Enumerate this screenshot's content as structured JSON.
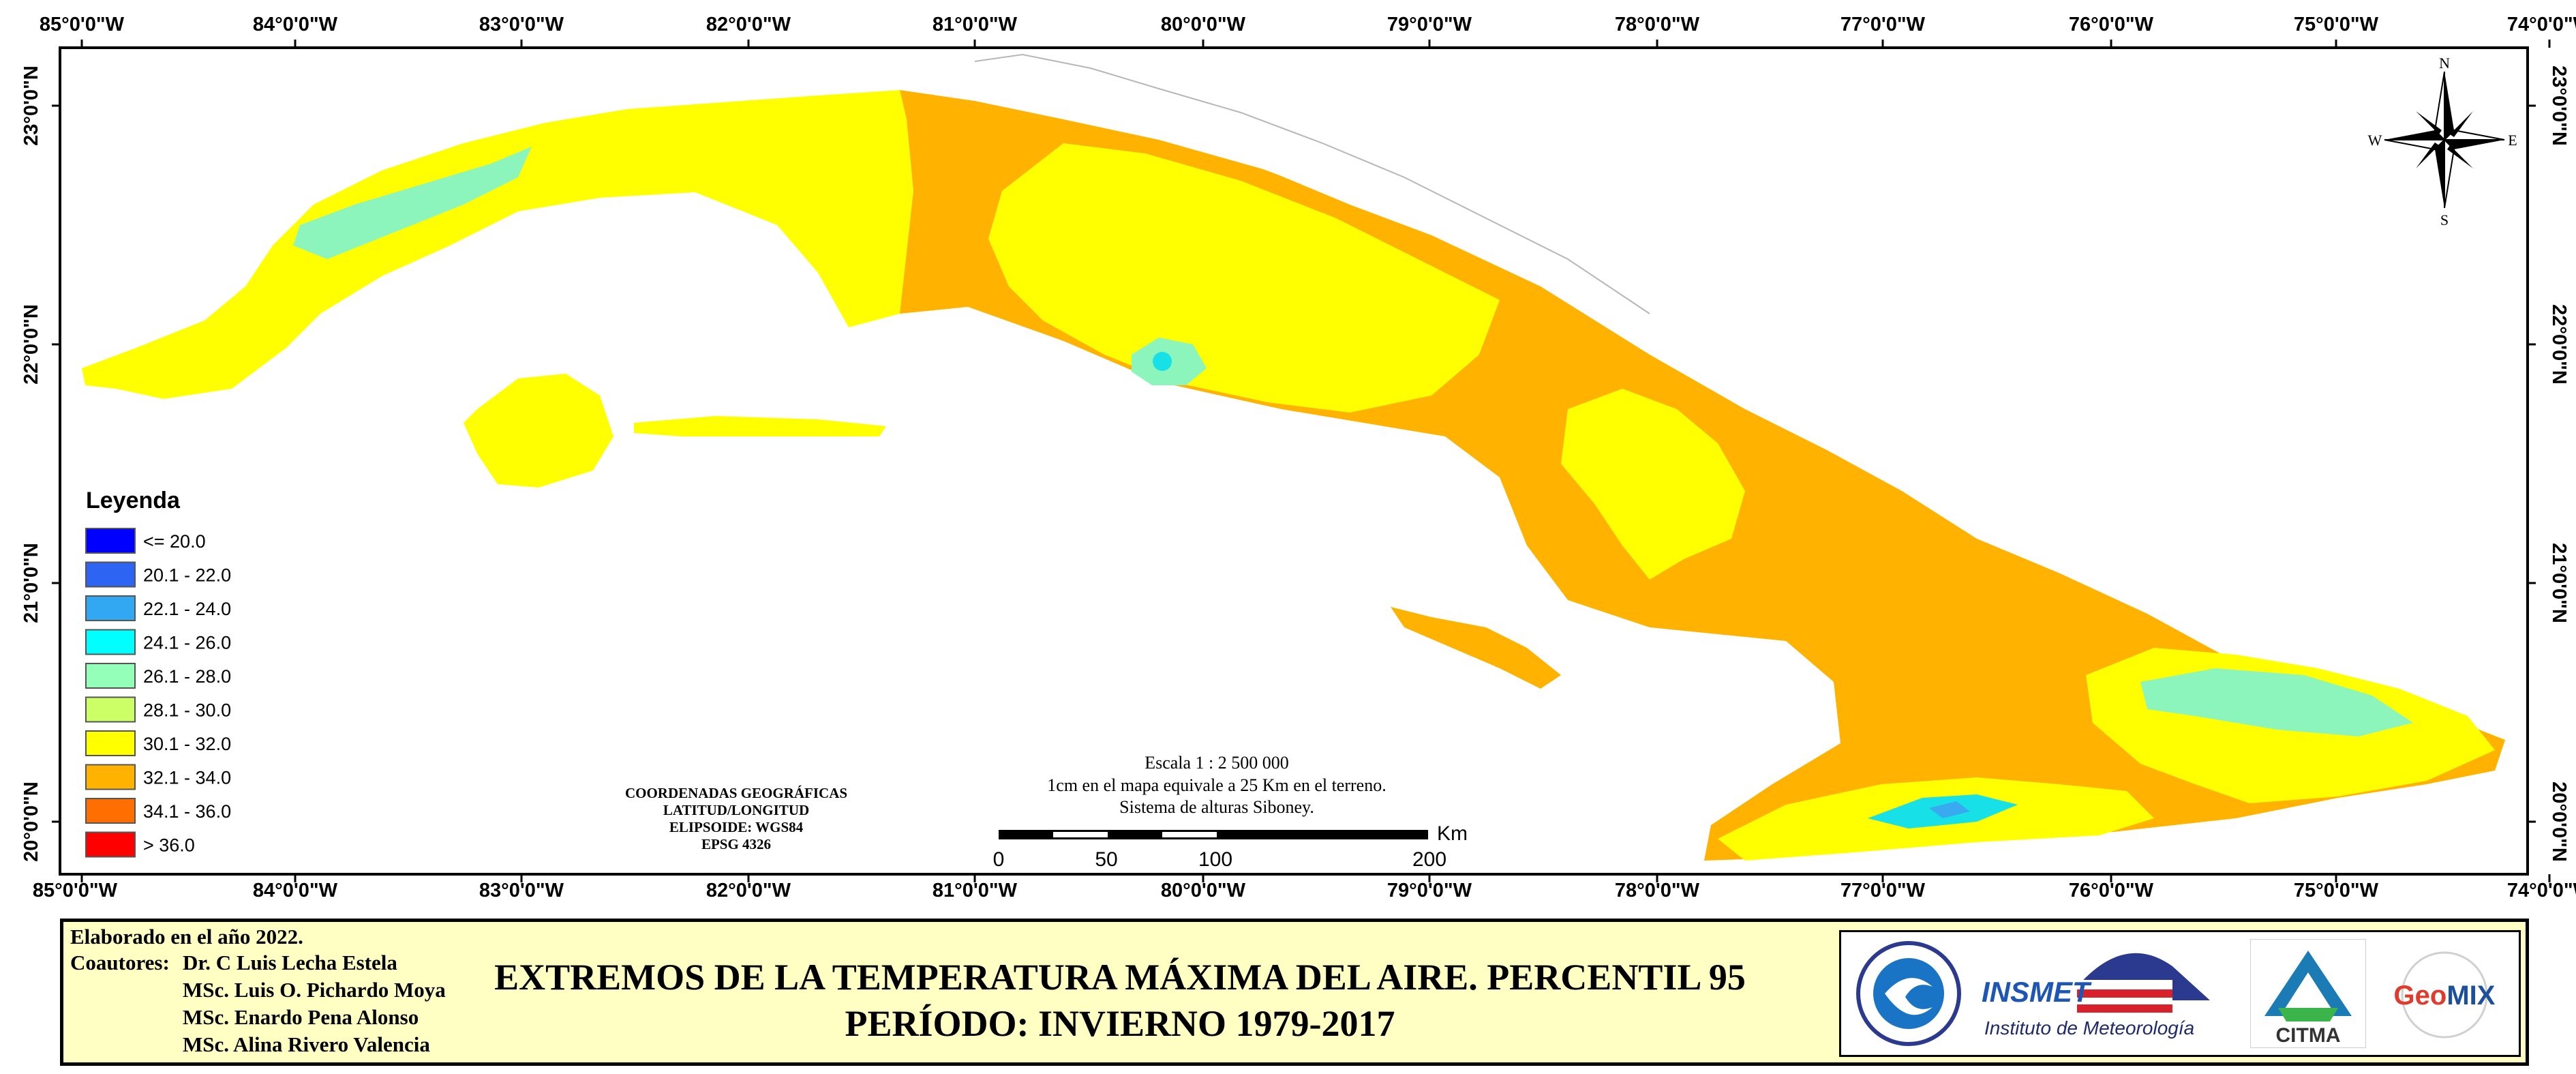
{
  "map": {
    "graticule": {
      "lon_labels": [
        "85°0'0\"W",
        "84°0'0\"W",
        "83°0'0\"W",
        "82°0'0\"W",
        "81°0'0\"W",
        "80°0'0\"W",
        "79°0'0\"W",
        "78°0'0\"W",
        "77°0'0\"W",
        "76°0'0\"W",
        "75°0'0\"W",
        "74°0'0\"W"
      ],
      "lat_labels": [
        "23°0'0\"N",
        "22°0'0\"N",
        "21°0'0\"N",
        "20°0'0\"N"
      ]
    },
    "colors": {
      "sea": "#ffffff",
      "zone_30_32": "#ffff00",
      "zone_32_34": "#ffb300",
      "zone_26_28": "#8cf5bc",
      "zone_24_26": "#17e0e6",
      "zone_22_24": "#3aaaf0"
    }
  },
  "legend": {
    "title": "Leyenda",
    "items": [
      {
        "label": "<= 20.0",
        "color": "#0000ff"
      },
      {
        "label": "20.1 - 22.0",
        "color": "#2e64f2"
      },
      {
        "label": "22.1 - 24.0",
        "color": "#33a8f2"
      },
      {
        "label": "24.1 - 26.0",
        "color": "#00ffff"
      },
      {
        "label": "26.1 - 28.0",
        "color": "#94ffb8"
      },
      {
        "label": "28.1 - 30.0",
        "color": "#ccff66"
      },
      {
        "label": "30.1 - 32.0",
        "color": "#ffff00"
      },
      {
        "label": "32.1 - 34.0",
        "color": "#ffb300"
      },
      {
        "label": "34.1 - 36.0",
        "color": "#ff6e00"
      },
      {
        "label": "> 36.0",
        "color": "#ff0000"
      }
    ]
  },
  "coords_box": {
    "lines": [
      "COORDENADAS GEOGRÁFICAS",
      "LATITUD/LONGITUD",
      "ELIPSOIDE: WGS84",
      "EPSG 4326"
    ]
  },
  "scale": {
    "lines": [
      "Escala 1 : 2 500 000",
      "1cm en el mapa equivale a 25 Km en el terreno.",
      "Sistema de alturas Siboney."
    ],
    "ticks": [
      "0",
      "50",
      "100",
      "200"
    ],
    "unit": "Km"
  },
  "compass": {
    "n": "N",
    "s": "S",
    "e": "E",
    "w": "W"
  },
  "footer": {
    "elaborado": "Elaborado en el año 2022.",
    "coautores_label": "Coautores:",
    "authors": [
      "Dr. C Luis Lecha Estela",
      "MSc. Luis O. Pichardo Moya",
      "MSc. Enardo Pena Alonso",
      "MSc. Alina Rivero Valencia"
    ],
    "title_line1": "EXTREMOS DE LA TEMPERATURA MÁXIMA DEL AIRE. PERCENTIL 95",
    "title_line2": "PERÍODO: INVIERNO 1979-2017",
    "logos": {
      "insmet": "INSMET",
      "insmet_sub": "Instituto de Meteorología",
      "citma": "CITMA",
      "geomix": "GeoMIX",
      "geomix_g": "Geo",
      "geomix_mix": "MIX"
    }
  }
}
